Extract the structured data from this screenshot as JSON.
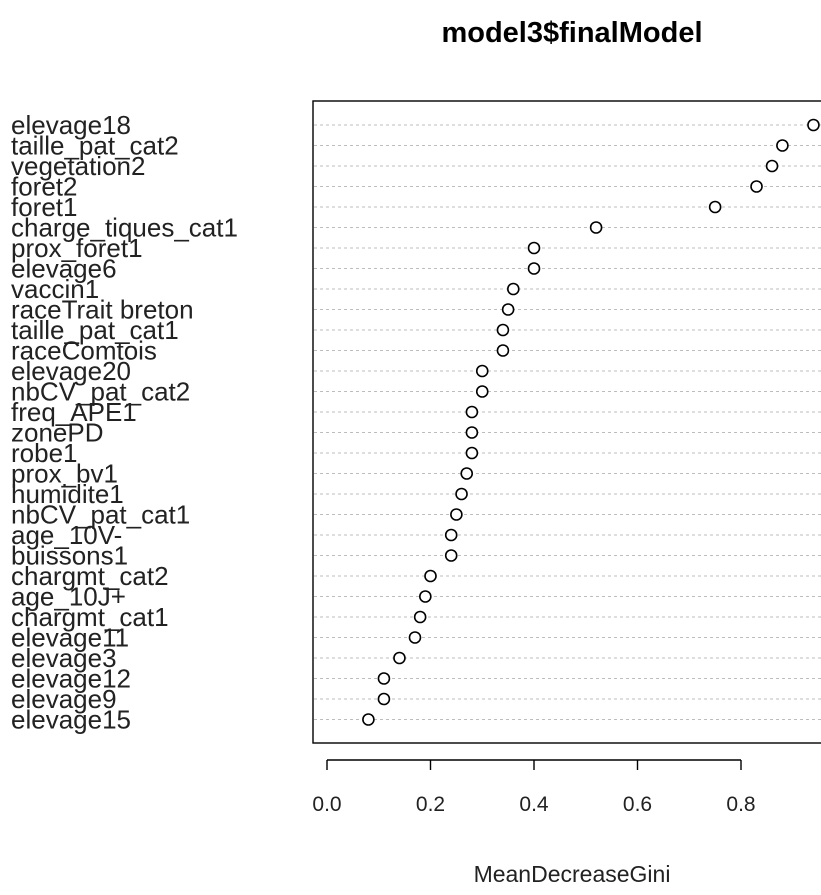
{
  "chart_data": {
    "type": "scatter",
    "title": "model3$finalModel",
    "xlabel": "MeanDecreaseGini",
    "ylabel": "",
    "xlim": [
      -0.07,
      0.97
    ],
    "xticks": [
      "0.0",
      "0.2",
      "0.4",
      "0.6",
      "0.8"
    ],
    "xtick_values": [
      0.0,
      0.2,
      0.4,
      0.6,
      0.8
    ],
    "grid": true,
    "series": [
      {
        "categories": [
          "elevage18",
          "taille_pat_cat2",
          "vegetation2",
          "foret2",
          "foret1",
          "charge_tiques_cat1",
          "prox_foret1",
          "elevage6",
          "vaccin1",
          "raceTrait breton",
          "taille_pat_cat1",
          "raceComtois",
          "elevage20",
          "nbCV_pat_cat2",
          "freq_APE1",
          "zonePD",
          "robe1",
          "prox_bv1",
          "humidite1",
          "nbCV_pat_cat1",
          "age_10V-",
          "buissons1",
          "chargmt_cat2",
          "age_10J+",
          "chargmt_cat1",
          "elevage11",
          "elevage3",
          "elevage12",
          "elevage9",
          "elevage15"
        ],
        "values": [
          0.94,
          0.88,
          0.86,
          0.83,
          0.75,
          0.52,
          0.4,
          0.4,
          0.36,
          0.35,
          0.34,
          0.34,
          0.3,
          0.3,
          0.28,
          0.28,
          0.28,
          0.27,
          0.26,
          0.25,
          0.24,
          0.24,
          0.2,
          0.19,
          0.18,
          0.17,
          0.14,
          0.11,
          0.11,
          0.08
        ]
      }
    ]
  }
}
